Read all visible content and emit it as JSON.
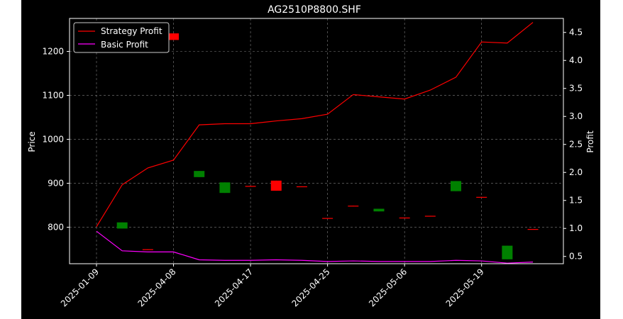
{
  "chart_data": {
    "type": "candlestick+line",
    "title": "AG2510P8800.SHF",
    "xlabel": "",
    "ylabel_left": "Price",
    "ylabel_right": "Profit",
    "ylim_left": [
      717,
      1275
    ],
    "ylim_right": [
      0.37,
      4.75
    ],
    "yticks_left": [
      "800",
      "900",
      "1000",
      "1100",
      "1200"
    ],
    "yticks_right": [
      "0.5",
      "1.0",
      "1.5",
      "2.0",
      "2.5",
      "3.0",
      "3.5",
      "4.0",
      "4.5"
    ],
    "x_ticks": [
      "2025-01-09",
      "2025-04-08",
      "2025-04-17",
      "2025-04-25",
      "2025-05-06",
      "2025-05-19"
    ],
    "x_tick_index": [
      0,
      3,
      6,
      9,
      12,
      15
    ],
    "grid": true,
    "legend_position": "top-left",
    "up_color": "#ff0000",
    "down_color": "#008000",
    "candles": [
      {
        "i": 1,
        "open": 811,
        "close": 797,
        "high": 811,
        "low": 797
      },
      {
        "i": 2,
        "open": 748,
        "close": 750,
        "high": 750,
        "low": 748
      },
      {
        "i": 3,
        "open": 1226,
        "close": 1241,
        "high": 1241,
        "low": 1226
      },
      {
        "i": 4,
        "open": 928,
        "close": 914,
        "high": 928,
        "low": 914
      },
      {
        "i": 5,
        "open": 902,
        "close": 878,
        "high": 902,
        "low": 878
      },
      {
        "i": 6,
        "open": 892,
        "close": 894,
        "high": 894,
        "low": 892
      },
      {
        "i": 7,
        "open": 883,
        "close": 906,
        "high": 906,
        "low": 883
      },
      {
        "i": 8,
        "open": 892,
        "close": 893,
        "high": 893,
        "low": 892
      },
      {
        "i": 9,
        "open": 820,
        "close": 821,
        "high": 821,
        "low": 820
      },
      {
        "i": 10,
        "open": 848,
        "close": 849,
        "high": 849,
        "low": 848
      },
      {
        "i": 11,
        "open": 842,
        "close": 836,
        "high": 842,
        "low": 836
      },
      {
        "i": 12,
        "open": 821,
        "close": 822,
        "high": 822,
        "low": 821
      },
      {
        "i": 13,
        "open": 825,
        "close": 826,
        "high": 826,
        "low": 825
      },
      {
        "i": 14,
        "open": 905,
        "close": 882,
        "high": 905,
        "low": 882
      },
      {
        "i": 15,
        "open": 868,
        "close": 869,
        "high": 869,
        "low": 868
      },
      {
        "i": 16,
        "open": 758,
        "close": 727,
        "high": 758,
        "low": 727
      },
      {
        "i": 17,
        "open": 795,
        "close": 796,
        "high": 796,
        "low": 795
      }
    ],
    "series": [
      {
        "name": "Strategy Profit",
        "color": "#ff0000",
        "values": [
          1.03,
          1.78,
          2.08,
          2.22,
          2.85,
          2.87,
          2.87,
          2.92,
          2.96,
          3.04,
          3.39,
          3.35,
          3.31,
          3.47,
          3.7,
          4.33,
          4.31,
          4.68
        ]
      },
      {
        "name": "Basic Profit",
        "color": "#ff00ff",
        "values": [
          0.95,
          0.6,
          0.58,
          0.58,
          0.44,
          0.43,
          0.43,
          0.44,
          0.43,
          0.41,
          0.42,
          0.41,
          0.41,
          0.41,
          0.43,
          0.42,
          0.38,
          0.4
        ]
      }
    ]
  }
}
